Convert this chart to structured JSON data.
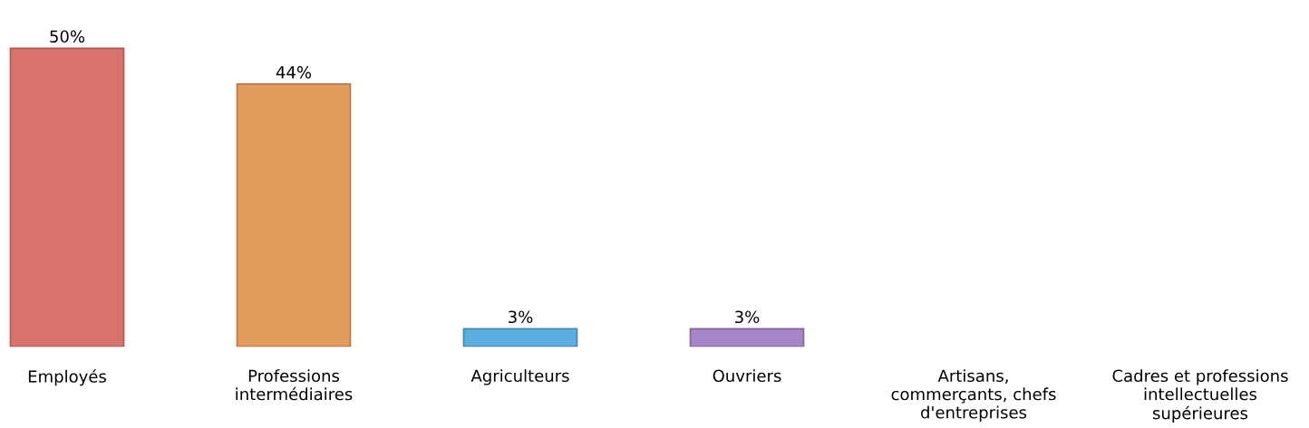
{
  "chart_data": {
    "type": "bar",
    "categories": [
      "Employés",
      "Professions\nintermédiaires",
      "Agriculteurs",
      "Ouvriers",
      "Artisans,\ncommerçants, chefs\nd'entreprises",
      "Cadres et professions\nintellectuelles\nsupérieures"
    ],
    "values": [
      50,
      44,
      3,
      3,
      null,
      null
    ],
    "colors": [
      "#d9736e",
      "#e29d5e",
      "#5aafe0",
      "#a385c8",
      "#d9736e",
      "#d9736e"
    ],
    "value_labels": [
      "50%",
      "44%",
      "3%",
      "3%",
      null,
      null
    ],
    "grid": false,
    "legend": false
  }
}
